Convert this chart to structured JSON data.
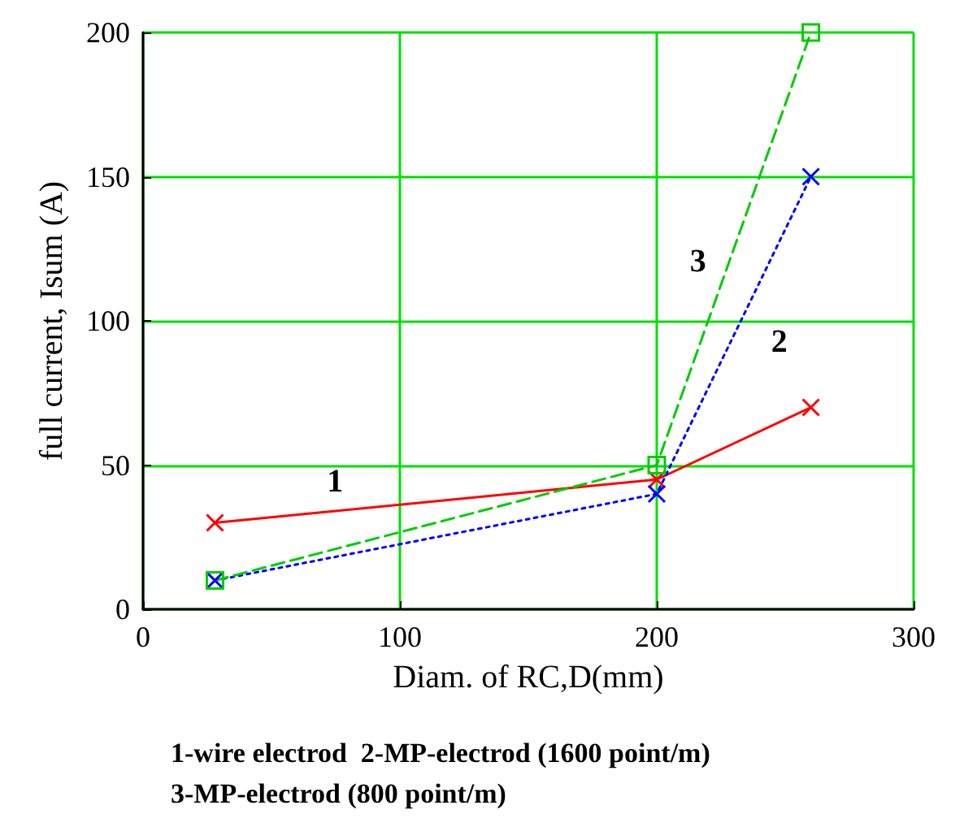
{
  "chart_data": {
    "type": "line",
    "xlabel": "Diam. of RC,D(mm)",
    "ylabel": "full current, Isum (A)",
    "x": [
      28,
      200,
      260
    ],
    "series": [
      {
        "name": "1",
        "color": "#ff0000",
        "values": [
          30,
          45,
          70
        ],
        "marker": "cross",
        "line_style": "solid"
      },
      {
        "name": "2",
        "color": "#0000ff",
        "values": [
          10,
          40,
          150
        ],
        "marker": "cross",
        "line_style": "dotted"
      },
      {
        "name": "3",
        "color": "#00cc00",
        "values": [
          10,
          50,
          200
        ],
        "marker": "square",
        "line_style": "dashed"
      }
    ],
    "xlim": [
      0,
      300
    ],
    "xticks": [
      0,
      100,
      200,
      300
    ],
    "ylim": [
      0,
      200
    ],
    "yticks": [
      0,
      50,
      100,
      150,
      200
    ],
    "grid": true,
    "annotations": [
      "1-wire electrod  2-MP-electrod (1600 point/m)",
      "3-MP-electrod (800 point/m)"
    ]
  }
}
